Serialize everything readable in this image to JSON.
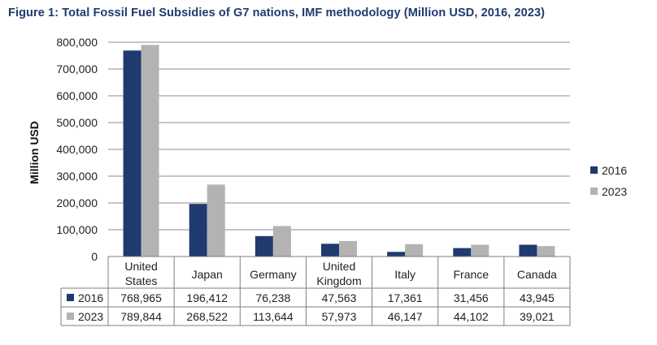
{
  "title": "Figure 1: Total Fossil Fuel Subsidies of G7 nations, IMF methodology (Million USD, 2016, 2023)",
  "chart_data": {
    "type": "bar",
    "ylabel": "Million USD",
    "ylim": [
      0,
      800000
    ],
    "yticks": [
      0,
      100000,
      200000,
      300000,
      400000,
      500000,
      600000,
      700000,
      800000
    ],
    "ytick_labels": [
      "0",
      "100,000",
      "200,000",
      "300,000",
      "400,000",
      "500,000",
      "600,000",
      "700,000",
      "800,000"
    ],
    "grid": true,
    "legend_position": "right",
    "categories": [
      [
        "United",
        "States"
      ],
      [
        "Japan"
      ],
      [
        "Germany"
      ],
      [
        "United",
        "Kingdom"
      ],
      [
        "Italy"
      ],
      [
        "France"
      ],
      [
        "Canada"
      ]
    ],
    "series": [
      {
        "name": "2016",
        "color": "#1f3a6e",
        "values": [
          768965,
          196412,
          76238,
          47563,
          17361,
          31456,
          43945
        ],
        "labels": [
          "768,965",
          "196,412",
          "76,238",
          "47,563",
          "17,361",
          "31,456",
          "43,945"
        ]
      },
      {
        "name": "2023",
        "color": "#b3b3b3",
        "values": [
          789844,
          268522,
          113644,
          57973,
          46147,
          44102,
          39021
        ],
        "labels": [
          "789,844",
          "268,522",
          "113,644",
          "57,973",
          "46,147",
          "44,102",
          "39,021"
        ]
      }
    ],
    "data_table": true
  }
}
